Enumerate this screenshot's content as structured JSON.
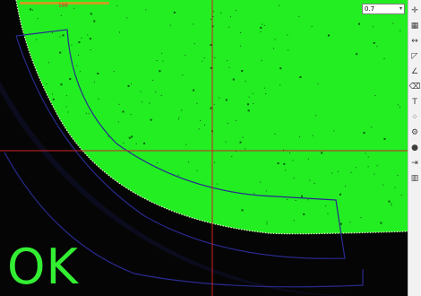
{
  "overlay": {
    "status_text": "OK",
    "status_color": "#33ee33",
    "ruler_text": "100"
  },
  "zoom": {
    "value": "0.7"
  },
  "colors": {
    "sample_fill": "#22ee22",
    "background": "#050505",
    "crosshair": "#cc2222",
    "guide_line": "#2a2a90",
    "speckle": "#0a5a0a"
  },
  "toolbar": {
    "tools": [
      {
        "name": "pan-tool-icon",
        "glyph": "✛"
      },
      {
        "name": "grid-tool-icon",
        "glyph": "▦"
      },
      {
        "name": "measure-tool-icon",
        "glyph": "↔"
      },
      {
        "name": "select-tool-icon",
        "glyph": "◸"
      },
      {
        "name": "angle-tool-icon",
        "glyph": "∠"
      },
      {
        "name": "erase-tool-icon",
        "glyph": "⌫"
      },
      {
        "name": "text-tool-icon",
        "glyph": "T"
      },
      {
        "name": "points-tool-icon",
        "glyph": "⁘"
      },
      {
        "name": "settings-tool-icon",
        "glyph": "⚙"
      },
      {
        "name": "record-tool-icon",
        "glyph": "●"
      },
      {
        "name": "export-tool-icon",
        "glyph": "⇥"
      },
      {
        "name": "layout-tool-icon",
        "glyph": "▥"
      }
    ]
  }
}
